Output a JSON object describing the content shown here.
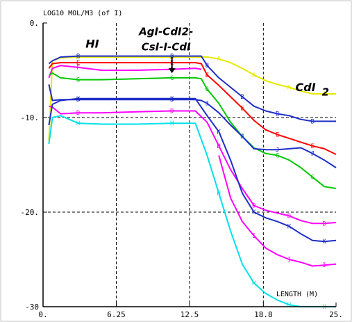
{
  "chart_data": {
    "type": "line",
    "title": "",
    "ylabel": "LOG10 MOL/M3 (of I)",
    "xlabel": "LENGTH (M)",
    "xlim": [
      0,
      25
    ],
    "ylim": [
      -30,
      0
    ],
    "xticks": [
      0,
      6.25,
      12.5,
      18.8,
      25
    ],
    "xtick_labels": [
      "0.",
      "6.25",
      "12.5",
      "18.8",
      "25."
    ],
    "yticks": [
      0,
      -10,
      -20,
      -30
    ],
    "ytick_labels": [
      "0.",
      "-10.",
      "-20.",
      "-30"
    ],
    "grid": true,
    "annotations": [
      {
        "text": "HI",
        "x": 4.2,
        "y": -2.6,
        "size": 16
      },
      {
        "text": "AgI-CdI2-",
        "x": 10.5,
        "y": -1.3,
        "size": 15
      },
      {
        "text": "CsI-I-CdI",
        "x": 10.5,
        "y": -2.9,
        "size": 15
      },
      {
        "text": "CdI",
        "x": 22.4,
        "y": -7.2,
        "size": 16
      },
      {
        "text": "2",
        "x": 24.1,
        "y": -7.7,
        "size": 15
      }
    ],
    "arrow": {
      "x": 11,
      "y_from": -3.6,
      "y_to": -5.3
    },
    "series": [
      {
        "marker": "A",
        "color": "#e8e800",
        "x": [
          0.5,
          0.8,
          1.5,
          3,
          5,
          8,
          11,
          13,
          14,
          15,
          16,
          17,
          18,
          19,
          20,
          21,
          22,
          23,
          24,
          25
        ],
        "y": [
          -12.5,
          -4.0,
          -3.7,
          -3.6,
          -3.6,
          -3.6,
          -3.6,
          -3.6,
          -3.6,
          -3.8,
          -4.2,
          -4.8,
          -5.5,
          -6.1,
          -6.5,
          -6.8,
          -7.2,
          -7.5,
          -7.5,
          -7.5
        ]
      },
      {
        "marker": "B",
        "color": "#1e2ec8",
        "x": [
          0.5,
          0.8,
          1.5,
          3,
          5,
          8,
          11,
          13,
          13.5,
          14,
          15,
          16,
          17,
          18,
          19,
          20,
          21,
          22,
          23,
          24,
          25
        ],
        "y": [
          -4.3,
          -4.0,
          -3.6,
          -3.5,
          -3.5,
          -3.5,
          -3.5,
          -3.5,
          -3.5,
          -4.5,
          -5.8,
          -6.8,
          -7.8,
          -8.8,
          -9.3,
          -9.6,
          -9.8,
          -10.2,
          -10.4,
          -10.4,
          -10.4
        ]
      },
      {
        "marker": "E",
        "color": "#ff0000",
        "x": [
          0.5,
          0.8,
          1.5,
          3,
          5,
          8,
          11,
          13,
          13.5,
          14,
          15,
          16,
          17,
          18,
          19,
          20,
          21,
          22,
          23,
          24,
          25
        ],
        "y": [
          -4.8,
          -4.3,
          -4.2,
          -4.2,
          -4.2,
          -4.2,
          -4.2,
          -4.2,
          -4.3,
          -5.5,
          -6.6,
          -7.8,
          -9.0,
          -10.3,
          -11.3,
          -11.8,
          -12.2,
          -12.6,
          -13.0,
          -13.3,
          -13.9
        ]
      },
      {
        "marker": "F",
        "color": "#ff00ff",
        "x": [
          0.5,
          0.8,
          1.5,
          3,
          5,
          8,
          11,
          13,
          13.5
        ],
        "y": [
          -5.8,
          -4.8,
          -4.5,
          -4.7,
          -5.0,
          -5.0,
          -4.9,
          -4.8,
          -4.9
        ]
      },
      {
        "marker": "G",
        "color": "#00c800",
        "x": [
          0.5,
          0.8,
          1.5,
          3,
          5,
          8,
          11,
          13,
          13.5,
          14,
          15,
          16,
          17,
          18,
          19,
          20,
          21,
          22,
          23,
          24,
          25
        ],
        "y": [
          -5.5,
          -5.3,
          -5.8,
          -6.0,
          -6.0,
          -5.9,
          -5.8,
          -5.8,
          -5.9,
          -7.0,
          -8.5,
          -10.5,
          -12.0,
          -13.2,
          -13.8,
          -14.0,
          -14.5,
          -15.3,
          -16.3,
          -17.3,
          -17.5
        ]
      },
      {
        "marker": "J",
        "color": "#1e2ec8",
        "x": [
          0.5,
          0.8,
          1.5,
          3,
          5,
          8,
          11,
          13,
          13.5,
          14,
          15,
          16,
          17,
          18,
          19,
          20,
          21,
          22,
          23,
          24,
          25
        ],
        "y": [
          -6.5,
          -8.2,
          -8.1,
          -8.1,
          -8.1,
          -8.1,
          -8.1,
          -8.1,
          -8.2,
          -8.5,
          -9.5,
          -10.8,
          -12.0,
          -13.3,
          -13.4,
          -13.4,
          -13.3,
          -13.2,
          -13.8,
          -14.5,
          -15.3
        ]
      },
      {
        "marker": "D",
        "color": "#ff00ff",
        "x": [
          0.5,
          0.8,
          1.5,
          3,
          5,
          8,
          11,
          13,
          14,
          15,
          16,
          17,
          18,
          19,
          20,
          21,
          22,
          23,
          24,
          25
        ],
        "y": [
          -8.8,
          -8.9,
          -9.6,
          -9.5,
          -9.5,
          -9.4,
          -9.3,
          -9.3,
          -10.5,
          -13.0,
          -15.5,
          -17.5,
          -19.3,
          -19.8,
          -20.1,
          -20.4,
          -20.9,
          -21.2,
          -21.2,
          -21.1
        ]
      },
      {
        "marker": "H",
        "color": "#00e0e8",
        "x": [
          0.5,
          0.8,
          1.5,
          3,
          5,
          8,
          11,
          13,
          14,
          15,
          16,
          17,
          18,
          19,
          20,
          21,
          22,
          23,
          24,
          25
        ],
        "y": [
          -12.8,
          -10.0,
          -9.8,
          -10.6,
          -10.7,
          -10.7,
          -10.6,
          -10.6,
          -14.0,
          -18.0,
          -22.0,
          -25.5,
          -27.5,
          -28.6,
          -29.3,
          -29.8,
          -30.0,
          -30.0,
          -30.0,
          -30.0
        ]
      },
      {
        "marker": "I",
        "color": "#ff00ff",
        "x": [
          15,
          16,
          17,
          18,
          19,
          20,
          21,
          22,
          23,
          24,
          25
        ],
        "y": [
          -14.0,
          -18.5,
          -21.0,
          -22.5,
          -23.8,
          -24.5,
          -25.0,
          -25.3,
          -25.7,
          -25.6,
          -25.5
        ]
      },
      {
        "marker": "K",
        "color": "#1e2ec8",
        "x": [
          0.5,
          0.8,
          1.5,
          3,
          5,
          8,
          11,
          13,
          14,
          15,
          16,
          17,
          18,
          19,
          20,
          21,
          22,
          23,
          24,
          25
        ],
        "y": [
          -10.8,
          -8.6,
          -8.2,
          -8.0,
          -8.0,
          -8.0,
          -8.0,
          -8.0,
          -9.8,
          -11.5,
          -14.5,
          -18.0,
          -20.0,
          -20.6,
          -21.0,
          -21.5,
          -22.3,
          -23.0,
          -23.1,
          -23.0
        ]
      }
    ]
  }
}
